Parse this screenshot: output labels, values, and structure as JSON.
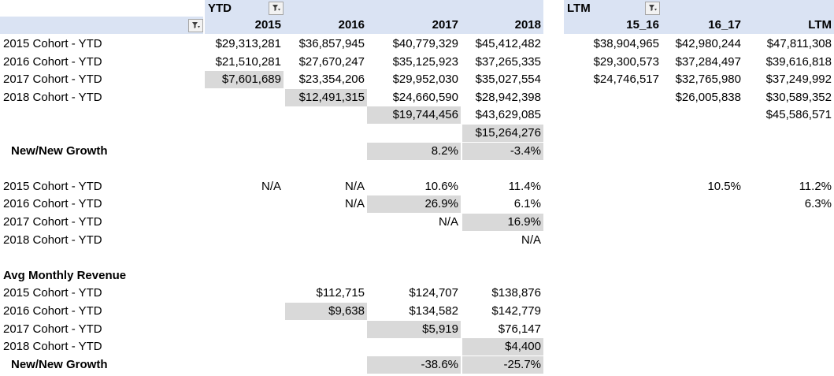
{
  "ytd": {
    "title": "YTD",
    "columns": [
      "2015",
      "2016",
      "2017",
      "2018"
    ]
  },
  "ltm": {
    "title": "LTM",
    "columns": [
      "15_16",
      "16_17",
      "LTM"
    ]
  },
  "icons": {
    "filter_buttons": [
      "filter-dropdown-icon",
      "filter-dropdown-icon",
      "filter-dropdown-icon"
    ]
  },
  "section1": {
    "rows": [
      {
        "label": "2015 Cohort - YTD",
        "ytd": [
          "$29,313,281",
          "$36,857,945",
          "$40,779,329",
          "$45,412,482"
        ],
        "ltm": [
          "$38,904,965",
          "$42,980,244",
          "$47,811,308"
        ]
      },
      {
        "label": "2016 Cohort - YTD",
        "ytd": [
          "$21,510,281",
          "$27,670,247",
          "$35,125,923",
          "$37,265,335"
        ],
        "ltm": [
          "$29,300,573",
          "$37,284,497",
          "$39,616,818"
        ]
      },
      {
        "label": "2017 Cohort - YTD",
        "ytd": [
          "$7,601,689",
          "$23,354,206",
          "$29,952,030",
          "$35,027,554"
        ],
        "ltm": [
          "$24,746,517",
          "$32,765,980",
          "$37,249,992"
        ]
      },
      {
        "label": "2018 Cohort - YTD",
        "ytd": [
          "",
          "$12,491,315",
          "$24,660,590",
          "$28,942,398"
        ],
        "ltm": [
          "",
          "$26,005,838",
          "$30,589,352"
        ]
      },
      {
        "label": "",
        "ytd": [
          "",
          "",
          "$19,744,456",
          "$43,629,085"
        ],
        "ltm": [
          "",
          "",
          "$45,586,571"
        ]
      },
      {
        "label": "",
        "ytd": [
          "",
          "",
          "",
          "$15,264,276"
        ],
        "ltm": [
          "",
          "",
          ""
        ]
      }
    ],
    "growth": {
      "label": "New/New Growth",
      "ytd": [
        "",
        "",
        "8.2%",
        "-3.4%"
      ]
    }
  },
  "section2": {
    "rows": [
      {
        "label": "2015 Cohort - YTD",
        "ytd": [
          "N/A",
          "N/A",
          "10.6%",
          "11.4%"
        ],
        "ltm": [
          "",
          "10.5%",
          "11.2%"
        ]
      },
      {
        "label": "2016 Cohort - YTD",
        "ytd": [
          "",
          "N/A",
          "26.9%",
          "6.1%"
        ],
        "ltm": [
          "",
          "",
          "6.3%"
        ]
      },
      {
        "label": "2017 Cohort - YTD",
        "ytd": [
          "",
          "",
          "N/A",
          "16.9%"
        ],
        "ltm": [
          "",
          "",
          ""
        ]
      },
      {
        "label": "2018 Cohort - YTD",
        "ytd": [
          "",
          "",
          "",
          "N/A"
        ],
        "ltm": [
          "",
          "",
          ""
        ]
      }
    ]
  },
  "section3": {
    "title": "Avg Monthly Revenue",
    "rows": [
      {
        "label": "2015 Cohort - YTD",
        "ytd": [
          "",
          "$112,715",
          "$124,707",
          "$138,876"
        ]
      },
      {
        "label": "2016 Cohort - YTD",
        "ytd": [
          "",
          "$9,638",
          "$134,582",
          "$142,779"
        ]
      },
      {
        "label": "2017 Cohort - YTD",
        "ytd": [
          "",
          "",
          "$5,919",
          "$76,147"
        ]
      },
      {
        "label": "2018 Cohort - YTD",
        "ytd": [
          "",
          "",
          "",
          "$4,400"
        ]
      }
    ],
    "growth": {
      "label": "New/New Growth",
      "ytd": [
        "",
        "",
        "-38.6%",
        "-25.7%"
      ]
    }
  },
  "colors": {
    "header_fill": "#dae3f3",
    "highlight_fill": "#d9d9d9"
  }
}
